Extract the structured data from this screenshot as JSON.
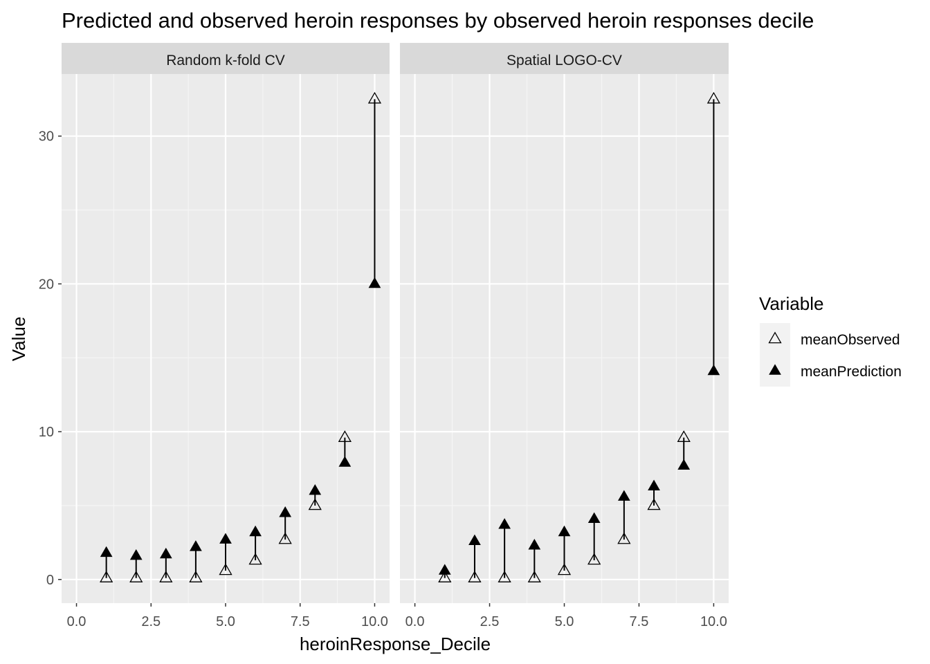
{
  "chart_data": {
    "type": "scatter",
    "title": "Predicted and observed heroin responses by observed heroin responses decile",
    "xlabel": "heroinResponse_Decile",
    "ylabel": "Value",
    "xlim": [
      -0.5,
      10.5
    ],
    "ylim": [
      -1.6,
      34.2
    ],
    "x_ticks": [
      0.0,
      2.5,
      5.0,
      7.5,
      10.0
    ],
    "x_tick_labels": [
      "0.0",
      "2.5",
      "5.0",
      "7.5",
      "10.0"
    ],
    "y_ticks": [
      0,
      10,
      20,
      30
    ],
    "y_tick_labels": [
      "0",
      "10",
      "20",
      "30"
    ],
    "grid": true,
    "legend": {
      "title": "Variable",
      "position": "right",
      "entries": [
        {
          "name": "meanObserved",
          "marker": "open-triangle"
        },
        {
          "name": "meanPrediction",
          "marker": "filled-triangle"
        }
      ]
    },
    "segments": "vertical line from meanObserved to meanPrediction at each decile",
    "panels": [
      {
        "name": "Random k-fold CV",
        "x": [
          1,
          2,
          3,
          4,
          5,
          6,
          7,
          8,
          9,
          10
        ],
        "series": [
          {
            "name": "meanObserved",
            "values": [
              0.1,
              0.1,
              0.1,
              0.1,
              0.6,
              1.3,
              2.7,
              5.0,
              9.6,
              32.5
            ]
          },
          {
            "name": "meanPrediction",
            "values": [
              1.8,
              1.6,
              1.7,
              2.2,
              2.7,
              3.2,
              4.5,
              6.0,
              7.9,
              20.0
            ]
          }
        ]
      },
      {
        "name": "Spatial LOGO-CV",
        "x": [
          1,
          2,
          3,
          4,
          5,
          6,
          7,
          8,
          9,
          10
        ],
        "series": [
          {
            "name": "meanObserved",
            "values": [
              0.1,
              0.1,
              0.1,
              0.1,
              0.6,
              1.3,
              2.7,
              5.0,
              9.6,
              32.5
            ]
          },
          {
            "name": "meanPrediction",
            "values": [
              0.6,
              2.6,
              3.7,
              2.3,
              3.2,
              4.1,
              5.6,
              6.3,
              7.7,
              14.1
            ]
          }
        ]
      }
    ]
  }
}
